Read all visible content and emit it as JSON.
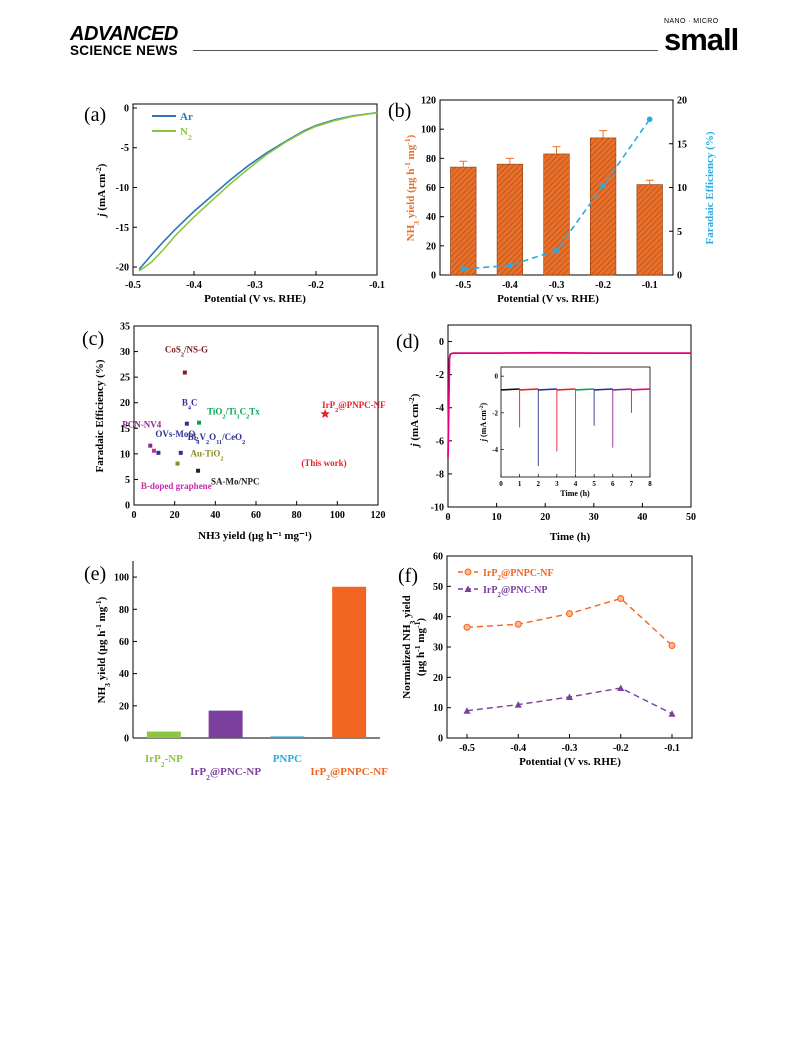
{
  "header": {
    "brand_line1": "ADVANCED",
    "brand_line2": "SCIENCE NEWS",
    "journal_tag": "NANO · MICRO",
    "journal_name": "small"
  },
  "colors": {
    "ar": "#2e75b6",
    "n2": "#8cc63f",
    "bar": "#e8702a",
    "fe_line": "#29abe2",
    "star": "#e8202a",
    "d_line": "#e6007e",
    "e_bars": [
      "#8cc63f",
      "#7b3f9e",
      "#29abe2",
      "#f26522"
    ],
    "f_nf": "#f26522",
    "f_np": "#7b3f9e"
  },
  "chart_data": [
    {
      "panel": "(a)",
      "type": "line",
      "xlabel": "Potential (V vs. RHE)",
      "ylabel": "j (mA cm⁻²)",
      "xlim": [
        -0.5,
        -0.1
      ],
      "ylim": [
        -21,
        0.5
      ],
      "xticks": [
        "-0.5",
        "-0.4",
        "-0.3",
        "-0.2",
        "-0.1"
      ],
      "yticks": [
        "0",
        "-5",
        "-10",
        "-15",
        "-20"
      ],
      "legend_position": "top-left",
      "series": [
        {
          "name": "Ar",
          "x": [
            -0.49,
            -0.47,
            -0.45,
            -0.43,
            -0.4,
            -0.37,
            -0.34,
            -0.31,
            -0.28,
            -0.25,
            -0.22,
            -0.2,
            -0.17,
            -0.14,
            -0.1
          ],
          "y": [
            -20.3,
            -18.5,
            -16.8,
            -15.2,
            -13.0,
            -11.0,
            -9.0,
            -7.2,
            -5.6,
            -4.2,
            -2.9,
            -2.2,
            -1.5,
            -1.0,
            -0.6
          ]
        },
        {
          "name": "N2",
          "x": [
            -0.49,
            -0.47,
            -0.45,
            -0.43,
            -0.4,
            -0.37,
            -0.34,
            -0.31,
            -0.28,
            -0.25,
            -0.22,
            -0.2,
            -0.17,
            -0.14,
            -0.1
          ],
          "y": [
            -20.5,
            -19.4,
            -17.8,
            -16.0,
            -13.7,
            -11.6,
            -9.5,
            -7.6,
            -5.8,
            -4.3,
            -3.0,
            -2.3,
            -1.6,
            -1.05,
            -0.6
          ]
        }
      ]
    },
    {
      "panel": "(b)",
      "type": "bar",
      "xlabel": "Potential (V vs. RHE)",
      "ylabel_left": "NH3 yield (μg h⁻¹ mg⁻¹)",
      "ylabel_right": "Faradaic Efficiency (%)",
      "categories": [
        "-0.5",
        "-0.4",
        "-0.3",
        "-0.2",
        "-0.1"
      ],
      "values": [
        74,
        76,
        83,
        94,
        62
      ],
      "errors": [
        4,
        4,
        5,
        5,
        3
      ],
      "fe_values": [
        0.7,
        1.1,
        2.8,
        10.2,
        17.8
      ],
      "fe_errors": [
        0.1,
        0.2,
        0.3,
        0.4,
        0.5
      ],
      "ylim": [
        0,
        120
      ],
      "ylim_right": [
        0,
        20
      ],
      "yticks": [
        "0",
        "20",
        "40",
        "60",
        "80",
        "100",
        "120"
      ],
      "yticks_right": [
        "0",
        "5",
        "10",
        "15",
        "20"
      ]
    },
    {
      "panel": "(c)",
      "type": "scatter",
      "xlabel": "NH3 yield (μg h⁻¹ mg⁻¹)",
      "ylabel": "Faradaic Efficiency (%)",
      "xlim": [
        0,
        120
      ],
      "ylim": [
        0,
        35
      ],
      "xticks": [
        "0",
        "20",
        "40",
        "60",
        "80",
        "100",
        "120"
      ],
      "yticks": [
        "0",
        "5",
        "10",
        "15",
        "20",
        "25",
        "30",
        "35"
      ],
      "points": [
        {
          "label": "CoS2/NS-G",
          "x": 25,
          "y": 25.9,
          "color": "#7a2020"
        },
        {
          "label": "B4C",
          "x": 26,
          "y": 15.9,
          "color": "#2e3192"
        },
        {
          "label": "TiO2/Ti3C2Tx",
          "x": 32,
          "y": 16.1,
          "color": "#00a651"
        },
        {
          "label": "PCN-NV4",
          "x": 8,
          "y": 11.6,
          "color": "#92278f"
        },
        {
          "label": "OVs-MoO2",
          "x": 12,
          "y": 10.2,
          "color": "#2e3192"
        },
        {
          "label": "Bi4V2O11/CeO2",
          "x": 23,
          "y": 10.2,
          "color": "#2e3192"
        },
        {
          "label": "B-doped graphene",
          "x": 9.8,
          "y": 10.6,
          "color": "#c42da8"
        },
        {
          "label": "Au-TiO2",
          "x": 21.4,
          "y": 8.1,
          "color": "#8a8a2a"
        },
        {
          "label": "SA-Mo/NPC",
          "x": 31.5,
          "y": 6.7,
          "color": "#222222"
        },
        {
          "label": "IrP2@PNPC-NF",
          "x": 94,
          "y": 17.8,
          "color": "#e8202a"
        }
      ],
      "annotation": "(This work)"
    },
    {
      "panel": "(d)",
      "type": "line",
      "xlabel": "Time (h)",
      "ylabel": "j (mA cm⁻²)",
      "xlim": [
        0,
        50
      ],
      "ylim": [
        -10,
        1
      ],
      "xticks": [
        "0",
        "10",
        "20",
        "30",
        "40",
        "50"
      ],
      "yticks": [
        "0",
        "-2",
        "-4",
        "-6",
        "-8",
        "-10"
      ],
      "x": [
        0,
        0.3,
        0.5,
        1,
        10,
        20,
        30,
        40,
        50
      ],
      "y": [
        -7.0,
        -1.0,
        -0.75,
        -0.7,
        -0.7,
        -0.68,
        -0.7,
        -0.7,
        -0.7
      ],
      "inset": {
        "xlabel": "Time (h)",
        "ylabel": "j (mA cm⁻²)",
        "xlim": [
          0,
          8
        ],
        "ylim": [
          -5.5,
          0.5
        ],
        "xticks": [
          "0",
          "1",
          "2",
          "3",
          "4",
          "5",
          "6",
          "7",
          "8"
        ],
        "yticks": [
          "0",
          "-2",
          "-4"
        ],
        "spikes_x": [
          1,
          2,
          3,
          4,
          5,
          6,
          7
        ],
        "spikes_y": [
          -2.8,
          -4.9,
          -4.1,
          -5.3,
          -2.7,
          -3.9,
          -2.0
        ],
        "segment_colors": [
          "#111111",
          "#e8202a",
          "#2e3192",
          "#e8202a",
          "#00a651",
          "#2e3192",
          "#92278f",
          "#e6007e"
        ]
      }
    },
    {
      "panel": "(e)",
      "type": "bar",
      "ylabel": "NH3 yield (μg h⁻¹ mg⁻¹)",
      "categories": [
        "IrP2-NP",
        "IrP2@PNC-NP",
        "PNPC",
        "IrP2@PNPC-NF"
      ],
      "values": [
        4,
        17,
        1,
        94
      ],
      "ylim": [
        0,
        110
      ],
      "yticks": [
        "0",
        "20",
        "40",
        "60",
        "80",
        "100"
      ]
    },
    {
      "panel": "(f)",
      "type": "line",
      "xlabel": "Potential (V vs. RHE)",
      "ylabel": "Normalized NH3 yield (μg h⁻¹ mg⁻¹)",
      "categories": [
        "-0.5",
        "-0.4",
        "-0.3",
        "-0.2",
        "-0.1"
      ],
      "ylim": [
        0,
        60
      ],
      "yticks": [
        "0",
        "10",
        "20",
        "30",
        "40",
        "50",
        "60"
      ],
      "legend_position": "top-left",
      "series": [
        {
          "name": "IrP2@PNPC-NF",
          "values": [
            36.5,
            37.5,
            41,
            46,
            30.5
          ]
        },
        {
          "name": "IrP2@PNC-NP",
          "values": [
            9,
            11,
            13.5,
            16.5,
            8
          ]
        }
      ]
    }
  ]
}
